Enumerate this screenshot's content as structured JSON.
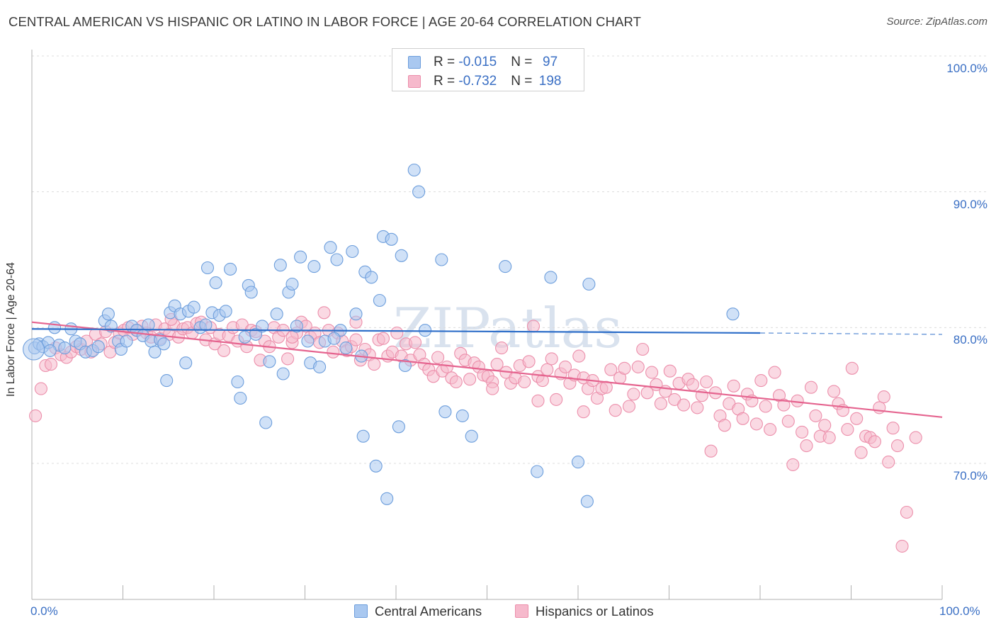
{
  "header": {
    "title": "CENTRAL AMERICAN VS HISPANIC OR LATINO IN LABOR FORCE | AGE 20-64 CORRELATION CHART",
    "source": "Source: ZipAtlas.com"
  },
  "colors": {
    "series1_fill": "#a9c8f0",
    "series1_stroke": "#6d9edc",
    "series1_line": "#2f6fc9",
    "series2_fill": "#f6b9cc",
    "series2_stroke": "#ec8fab",
    "series2_line": "#e5648f",
    "tick_text": "#3a6fc4",
    "grid": "#dcdcdc"
  },
  "legend": {
    "row1": {
      "r_label": "R = ",
      "r_value": "-0.015",
      "n_label": "N = ",
      "n_value": "97"
    },
    "row2": {
      "r_label": "R = ",
      "r_value": "-0.732",
      "n_label": "N = ",
      "n_value": "198"
    }
  },
  "chart_data": {
    "type": "scatter",
    "title": "CENTRAL AMERICAN VS HISPANIC OR LATINO IN LABOR FORCE | AGE 20-64 CORRELATION CHART",
    "xlabel": "",
    "ylabel": "In Labor Force | Age 20-64",
    "xlim": [
      0,
      100
    ],
    "ylim": [
      61,
      104
    ],
    "x_tick_labels": [
      "0.0%",
      "100.0%"
    ],
    "y_ticks": [
      70,
      80,
      90,
      100
    ],
    "y_tick_labels": [
      "70.0%",
      "80.0%",
      "90.0%",
      "100.0%"
    ],
    "grid": "horizontal dashed",
    "legend_position": "bottom",
    "watermark": "ZIPatlas",
    "series": [
      {
        "name": "Central Americans",
        "r": -0.015,
        "n": 97,
        "trend": {
          "x0": 0,
          "y0": 79.9,
          "x1": 80,
          "y1": 79.6,
          "dashed_to": 100,
          "dashed_y": 79.5
        },
        "points": [
          [
            0.3,
            78.5
          ],
          [
            0.8,
            78.8
          ],
          [
            1.2,
            78.6
          ],
          [
            1.8,
            78.9
          ],
          [
            2.5,
            80.0
          ],
          [
            3.0,
            78.7
          ],
          [
            3.6,
            78.5
          ],
          [
            4.3,
            79.9
          ],
          [
            4.8,
            79.0
          ],
          [
            5.3,
            78.8
          ],
          [
            5.9,
            78.2
          ],
          [
            6.7,
            78.3
          ],
          [
            7.3,
            78.6
          ],
          [
            8.0,
            80.5
          ],
          [
            8.4,
            81.0
          ],
          [
            8.7,
            80.1
          ],
          [
            9.5,
            79.0
          ],
          [
            9.8,
            78.4
          ],
          [
            10.4,
            79.0
          ],
          [
            11.0,
            80.1
          ],
          [
            11.5,
            79.8
          ],
          [
            12.2,
            79.4
          ],
          [
            12.8,
            80.2
          ],
          [
            13.1,
            79.0
          ],
          [
            13.5,
            78.2
          ],
          [
            14.1,
            79.1
          ],
          [
            14.5,
            78.8
          ],
          [
            14.8,
            76.1
          ],
          [
            15.2,
            81.1
          ],
          [
            15.7,
            81.6
          ],
          [
            16.3,
            81.0
          ],
          [
            16.9,
            77.4
          ],
          [
            17.2,
            81.2
          ],
          [
            17.8,
            81.5
          ],
          [
            18.5,
            80.0
          ],
          [
            19.1,
            80.2
          ],
          [
            19.3,
            84.4
          ],
          [
            19.8,
            81.1
          ],
          [
            20.2,
            83.3
          ],
          [
            20.6,
            80.9
          ],
          [
            21.3,
            81.2
          ],
          [
            21.8,
            84.3
          ],
          [
            22.6,
            76.0
          ],
          [
            22.9,
            74.8
          ],
          [
            23.4,
            79.3
          ],
          [
            23.8,
            83.1
          ],
          [
            24.1,
            82.6
          ],
          [
            24.6,
            79.5
          ],
          [
            25.3,
            80.1
          ],
          [
            25.7,
            73.0
          ],
          [
            26.1,
            77.5
          ],
          [
            26.9,
            81.0
          ],
          [
            27.3,
            84.6
          ],
          [
            27.6,
            76.6
          ],
          [
            28.2,
            82.6
          ],
          [
            28.6,
            83.2
          ],
          [
            29.1,
            80.1
          ],
          [
            29.5,
            85.2
          ],
          [
            30.3,
            79.0
          ],
          [
            30.6,
            77.4
          ],
          [
            31.0,
            84.5
          ],
          [
            31.6,
            77.1
          ],
          [
            32.2,
            79.0
          ],
          [
            32.8,
            85.9
          ],
          [
            33.5,
            85.0
          ],
          [
            33.9,
            79.8
          ],
          [
            34.5,
            78.5
          ],
          [
            35.2,
            85.6
          ],
          [
            35.6,
            81.0
          ],
          [
            36.2,
            77.9
          ],
          [
            36.6,
            84.1
          ],
          [
            37.3,
            83.7
          ],
          [
            37.8,
            69.8
          ],
          [
            38.2,
            82.0
          ],
          [
            38.6,
            86.7
          ],
          [
            39.0,
            67.4
          ],
          [
            39.5,
            86.5
          ],
          [
            40.3,
            72.7
          ],
          [
            40.6,
            85.3
          ],
          [
            41.0,
            77.2
          ],
          [
            42.0,
            91.6
          ],
          [
            42.5,
            90.0
          ],
          [
            43.2,
            79.8
          ],
          [
            45.0,
            85.0
          ],
          [
            45.4,
            73.8
          ],
          [
            47.3,
            73.5
          ],
          [
            48.3,
            72.0
          ],
          [
            52.0,
            84.5
          ],
          [
            55.5,
            69.4
          ],
          [
            57.0,
            83.7
          ],
          [
            60.0,
            70.1
          ],
          [
            61.0,
            67.2
          ],
          [
            61.2,
            83.2
          ],
          [
            77.0,
            81.0
          ],
          [
            36.4,
            72.0
          ],
          [
            33.2,
            79.2
          ],
          [
            2.0,
            78.3
          ]
        ]
      },
      {
        "name": "Hispanics or Latinos",
        "r": -0.732,
        "n": 198,
        "trend": {
          "x0": 0,
          "y0": 80.4,
          "x1": 100,
          "y1": 73.4
        },
        "points": [
          [
            0.4,
            73.5
          ],
          [
            1.0,
            75.5
          ],
          [
            1.5,
            77.2
          ],
          [
            2.1,
            77.3
          ],
          [
            2.6,
            78.5
          ],
          [
            3.2,
            78.0
          ],
          [
            3.8,
            77.8
          ],
          [
            4.3,
            78.2
          ],
          [
            4.9,
            78.6
          ],
          [
            5.4,
            78.4
          ],
          [
            6.0,
            79.0
          ],
          [
            6.5,
            78.2
          ],
          [
            7.0,
            79.5
          ],
          [
            7.6,
            78.8
          ],
          [
            8.1,
            79.7
          ],
          [
            8.6,
            78.2
          ],
          [
            9.1,
            78.9
          ],
          [
            9.6,
            79.6
          ],
          [
            10.1,
            79.8
          ],
          [
            10.6,
            80.0
          ],
          [
            11.1,
            79.5
          ],
          [
            11.6,
            79.8
          ],
          [
            12.1,
            80.1
          ],
          [
            12.6,
            79.6
          ],
          [
            13.1,
            79.3
          ],
          [
            13.6,
            80.2
          ],
          [
            14.1,
            79.2
          ],
          [
            14.6,
            79.9
          ],
          [
            15.1,
            79.5
          ],
          [
            15.6,
            80.2
          ],
          [
            16.1,
            79.3
          ],
          [
            16.6,
            79.9
          ],
          [
            17.1,
            80.0
          ],
          [
            17.6,
            79.6
          ],
          [
            18.1,
            80.3
          ],
          [
            18.6,
            80.4
          ],
          [
            19.1,
            79.1
          ],
          [
            19.6,
            80.0
          ],
          [
            20.1,
            78.8
          ],
          [
            20.6,
            79.5
          ],
          [
            21.1,
            78.3
          ],
          [
            21.6,
            79.4
          ],
          [
            22.1,
            80.0
          ],
          [
            22.6,
            79.0
          ],
          [
            23.1,
            80.2
          ],
          [
            23.6,
            78.6
          ],
          [
            24.1,
            79.8
          ],
          [
            24.6,
            79.7
          ],
          [
            25.1,
            77.6
          ],
          [
            25.6,
            79.0
          ],
          [
            26.1,
            78.6
          ],
          [
            26.6,
            80.0
          ],
          [
            27.1,
            79.3
          ],
          [
            27.6,
            79.8
          ],
          [
            28.1,
            77.7
          ],
          [
            28.6,
            78.9
          ],
          [
            29.1,
            79.6
          ],
          [
            29.6,
            80.4
          ],
          [
            30.1,
            80.1
          ],
          [
            30.6,
            79.3
          ],
          [
            31.1,
            79.6
          ],
          [
            31.6,
            78.9
          ],
          [
            32.1,
            81.1
          ],
          [
            32.6,
            79.8
          ],
          [
            33.1,
            78.2
          ],
          [
            33.6,
            79.6
          ],
          [
            34.1,
            79.0
          ],
          [
            34.6,
            78.3
          ],
          [
            35.1,
            78.6
          ],
          [
            35.6,
            79.1
          ],
          [
            36.1,
            77.6
          ],
          [
            36.6,
            78.4
          ],
          [
            37.1,
            78.0
          ],
          [
            37.6,
            77.3
          ],
          [
            38.1,
            79.1
          ],
          [
            38.6,
            79.2
          ],
          [
            39.1,
            77.9
          ],
          [
            39.6,
            78.2
          ],
          [
            40.1,
            79.6
          ],
          [
            40.6,
            77.9
          ],
          [
            41.1,
            78.8
          ],
          [
            41.6,
            77.6
          ],
          [
            42.1,
            78.9
          ],
          [
            42.6,
            78.0
          ],
          [
            43.1,
            77.3
          ],
          [
            43.6,
            76.9
          ],
          [
            44.1,
            76.4
          ],
          [
            44.6,
            77.8
          ],
          [
            45.1,
            76.8
          ],
          [
            45.6,
            77.1
          ],
          [
            46.1,
            76.3
          ],
          [
            46.6,
            76.0
          ],
          [
            47.1,
            78.1
          ],
          [
            47.6,
            77.6
          ],
          [
            48.1,
            76.2
          ],
          [
            48.6,
            77.4
          ],
          [
            49.1,
            77.1
          ],
          [
            49.6,
            76.5
          ],
          [
            50.1,
            76.4
          ],
          [
            50.6,
            76.0
          ],
          [
            51.1,
            77.3
          ],
          [
            51.6,
            78.5
          ],
          [
            52.1,
            76.7
          ],
          [
            52.6,
            75.9
          ],
          [
            53.1,
            76.3
          ],
          [
            53.6,
            77.2
          ],
          [
            54.1,
            76.0
          ],
          [
            54.6,
            77.5
          ],
          [
            55.1,
            80.1
          ],
          [
            55.6,
            76.4
          ],
          [
            56.1,
            76.1
          ],
          [
            56.6,
            76.9
          ],
          [
            57.1,
            77.7
          ],
          [
            57.6,
            74.7
          ],
          [
            58.1,
            76.6
          ],
          [
            58.6,
            77.1
          ],
          [
            59.1,
            75.9
          ],
          [
            59.6,
            76.5
          ],
          [
            60.1,
            77.9
          ],
          [
            60.6,
            76.3
          ],
          [
            61.1,
            75.5
          ],
          [
            61.6,
            76.1
          ],
          [
            62.1,
            74.8
          ],
          [
            62.6,
            75.5
          ],
          [
            63.1,
            75.6
          ],
          [
            63.6,
            76.9
          ],
          [
            64.1,
            73.9
          ],
          [
            64.6,
            76.3
          ],
          [
            65.1,
            77.0
          ],
          [
            65.6,
            74.2
          ],
          [
            66.1,
            75.1
          ],
          [
            66.6,
            77.1
          ],
          [
            67.1,
            78.4
          ],
          [
            67.6,
            75.2
          ],
          [
            68.1,
            76.7
          ],
          [
            68.6,
            75.8
          ],
          [
            69.1,
            74.4
          ],
          [
            69.6,
            75.3
          ],
          [
            70.1,
            76.8
          ],
          [
            70.6,
            74.7
          ],
          [
            71.1,
            75.9
          ],
          [
            71.6,
            74.3
          ],
          [
            72.1,
            76.2
          ],
          [
            72.6,
            75.8
          ],
          [
            73.1,
            74.1
          ],
          [
            73.6,
            75.0
          ],
          [
            74.1,
            76.0
          ],
          [
            74.6,
            70.9
          ],
          [
            75.1,
            75.2
          ],
          [
            75.6,
            73.5
          ],
          [
            76.1,
            72.8
          ],
          [
            76.6,
            74.4
          ],
          [
            77.1,
            75.7
          ],
          [
            77.6,
            74.0
          ],
          [
            78.1,
            73.3
          ],
          [
            78.6,
            75.1
          ],
          [
            79.1,
            74.6
          ],
          [
            79.6,
            72.9
          ],
          [
            80.1,
            76.1
          ],
          [
            80.6,
            74.2
          ],
          [
            81.1,
            72.5
          ],
          [
            81.6,
            76.7
          ],
          [
            82.1,
            75.0
          ],
          [
            82.6,
            74.3
          ],
          [
            83.1,
            73.1
          ],
          [
            83.6,
            69.9
          ],
          [
            84.1,
            74.6
          ],
          [
            84.6,
            72.3
          ],
          [
            85.1,
            71.3
          ],
          [
            85.6,
            75.6
          ],
          [
            86.1,
            73.5
          ],
          [
            86.6,
            72.0
          ],
          [
            87.1,
            72.8
          ],
          [
            87.6,
            71.9
          ],
          [
            88.1,
            75.3
          ],
          [
            88.6,
            74.4
          ],
          [
            89.1,
            73.9
          ],
          [
            89.6,
            72.5
          ],
          [
            90.1,
            77.0
          ],
          [
            90.6,
            73.3
          ],
          [
            91.1,
            70.8
          ],
          [
            91.6,
            72.0
          ],
          [
            92.1,
            71.9
          ],
          [
            92.6,
            71.6
          ],
          [
            93.1,
            74.1
          ],
          [
            93.6,
            74.9
          ],
          [
            94.1,
            70.1
          ],
          [
            94.6,
            72.6
          ],
          [
            95.1,
            71.3
          ],
          [
            95.6,
            63.9
          ],
          [
            96.1,
            66.4
          ],
          [
            97.1,
            71.9
          ],
          [
            50.6,
            75.5
          ],
          [
            55.6,
            74.6
          ],
          [
            35.6,
            80.4
          ],
          [
            28.6,
            79.3
          ],
          [
            15.3,
            80.6
          ],
          [
            60.6,
            73.8
          ]
        ]
      }
    ]
  }
}
